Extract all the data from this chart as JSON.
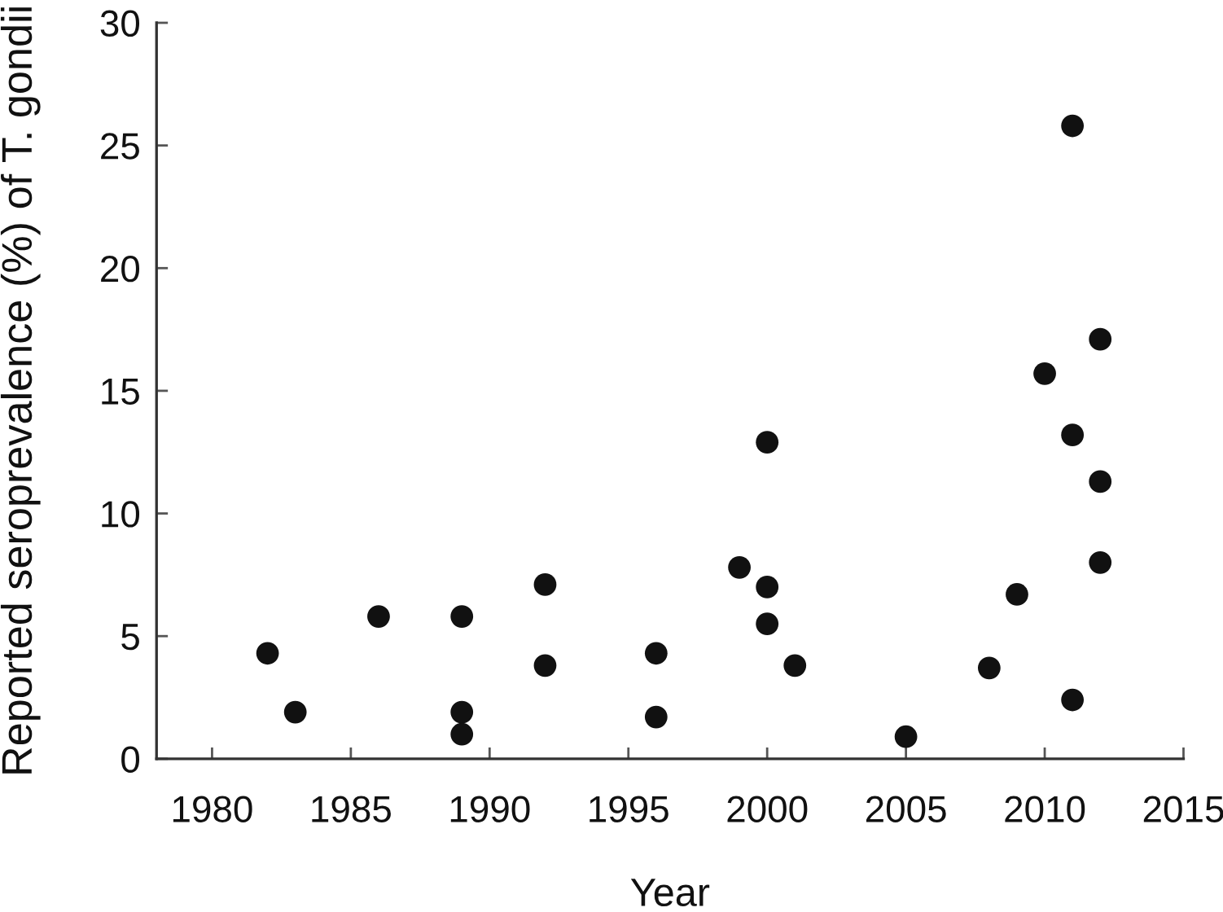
{
  "chart_data": {
    "type": "scatter",
    "xlabel": "Year",
    "ylabel": "Reported seroprevalence (%) of T. gondii",
    "x": [
      1982,
      1983,
      1986,
      1989,
      1989,
      1989,
      1992,
      1992,
      1996,
      1996,
      2011,
      2012,
      2010,
      2000,
      2011,
      2012,
      1999,
      2000,
      2012,
      2009,
      2000,
      2001,
      2008,
      2011,
      2005
    ],
    "series": [
      {
        "color": "#111111",
        "values": [
          4.3,
          1.9,
          5.8,
          5.8,
          1.9,
          1.0,
          7.1,
          3.8,
          4.3,
          1.7,
          25.8,
          17.1,
          15.7,
          12.9,
          13.2,
          11.3,
          7.8,
          7.0,
          8.0,
          6.7,
          5.5,
          3.8,
          3.7,
          2.4,
          0.9
        ]
      }
    ],
    "xlim": [
      1978,
      2015
    ],
    "xticks": [
      1980,
      1985,
      1990,
      1995,
      2000,
      2005,
      2010,
      2015
    ],
    "ylim": [
      0,
      30
    ],
    "yticks": [
      0,
      5,
      10,
      15,
      20,
      25,
      30
    ],
    "marker": "circle"
  }
}
